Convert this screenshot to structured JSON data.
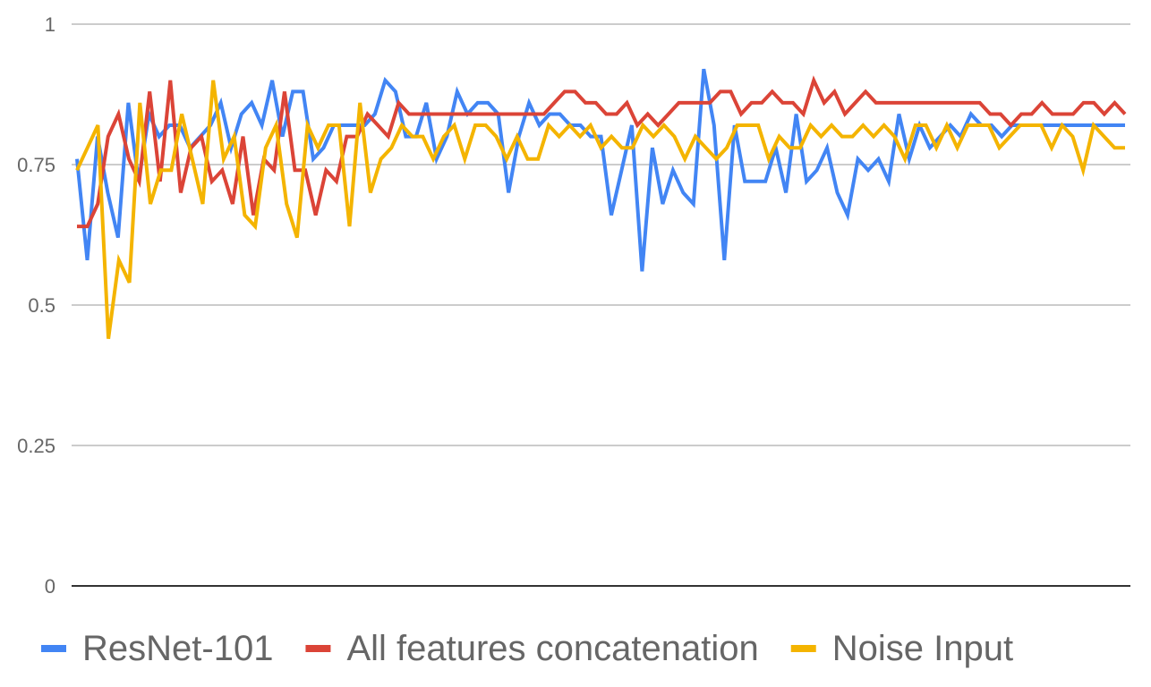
{
  "chart_data": {
    "type": "line",
    "title": "",
    "xlabel": "",
    "ylabel": "",
    "ylim": [
      0,
      1
    ],
    "yticks": [
      "0",
      "0.25",
      "0.5",
      "0.75",
      "1"
    ],
    "grid": true,
    "legend_position": "bottom",
    "series": [
      {
        "name": "ResNet-101",
        "color": "#4285F4",
        "values": [
          0.76,
          0.58,
          0.8,
          0.7,
          0.62,
          0.86,
          0.72,
          0.84,
          0.8,
          0.82,
          0.82,
          0.78,
          0.8,
          0.82,
          0.86,
          0.78,
          0.84,
          0.86,
          0.82,
          0.9,
          0.8,
          0.88,
          0.88,
          0.76,
          0.78,
          0.82,
          0.82,
          0.82,
          0.82,
          0.84,
          0.9,
          0.88,
          0.8,
          0.8,
          0.86,
          0.76,
          0.8,
          0.88,
          0.84,
          0.86,
          0.86,
          0.84,
          0.7,
          0.8,
          0.86,
          0.82,
          0.84,
          0.84,
          0.82,
          0.82,
          0.8,
          0.8,
          0.66,
          0.74,
          0.82,
          0.56,
          0.78,
          0.68,
          0.74,
          0.7,
          0.68,
          0.92,
          0.82,
          0.58,
          0.82,
          0.72,
          0.72,
          0.72,
          0.78,
          0.7,
          0.84,
          0.72,
          0.74,
          0.78,
          0.7,
          0.66,
          0.76,
          0.74,
          0.76,
          0.72,
          0.84,
          0.76,
          0.82,
          0.78,
          0.8,
          0.82,
          0.8,
          0.84,
          0.82,
          0.82,
          0.8,
          0.82,
          0.82,
          0.82,
          0.82,
          0.82,
          0.82,
          0.82,
          0.82,
          0.82,
          0.82,
          0.82,
          0.82
        ]
      },
      {
        "name": "All features concatenation",
        "color": "#DB4437",
        "values": [
          0.64,
          0.64,
          0.68,
          0.8,
          0.84,
          0.76,
          0.72,
          0.88,
          0.72,
          0.9,
          0.7,
          0.78,
          0.8,
          0.72,
          0.74,
          0.68,
          0.8,
          0.66,
          0.76,
          0.74,
          0.88,
          0.74,
          0.74,
          0.66,
          0.74,
          0.72,
          0.8,
          0.8,
          0.84,
          0.82,
          0.8,
          0.86,
          0.84,
          0.84,
          0.84,
          0.84,
          0.84,
          0.84,
          0.84,
          0.84,
          0.84,
          0.84,
          0.84,
          0.84,
          0.84,
          0.84,
          0.86,
          0.88,
          0.88,
          0.86,
          0.86,
          0.84,
          0.84,
          0.86,
          0.82,
          0.84,
          0.82,
          0.84,
          0.86,
          0.86,
          0.86,
          0.86,
          0.88,
          0.88,
          0.84,
          0.86,
          0.86,
          0.88,
          0.86,
          0.86,
          0.84,
          0.9,
          0.86,
          0.88,
          0.84,
          0.86,
          0.88,
          0.86,
          0.86,
          0.86,
          0.86,
          0.86,
          0.86,
          0.86,
          0.86,
          0.86,
          0.86,
          0.86,
          0.84,
          0.84,
          0.82,
          0.84,
          0.84,
          0.86,
          0.84,
          0.84,
          0.84,
          0.86,
          0.86,
          0.84,
          0.86,
          0.84
        ]
      },
      {
        "name": "Noise Input",
        "color": "#F4B400",
        "values": [
          0.74,
          0.78,
          0.82,
          0.44,
          0.58,
          0.54,
          0.86,
          0.68,
          0.74,
          0.74,
          0.84,
          0.76,
          0.68,
          0.9,
          0.76,
          0.8,
          0.66,
          0.64,
          0.78,
          0.82,
          0.68,
          0.62,
          0.82,
          0.78,
          0.82,
          0.82,
          0.64,
          0.86,
          0.7,
          0.76,
          0.78,
          0.82,
          0.8,
          0.8,
          0.76,
          0.8,
          0.82,
          0.76,
          0.82,
          0.82,
          0.8,
          0.76,
          0.8,
          0.76,
          0.76,
          0.82,
          0.8,
          0.82,
          0.8,
          0.82,
          0.78,
          0.8,
          0.78,
          0.78,
          0.82,
          0.8,
          0.82,
          0.8,
          0.76,
          0.8,
          0.78,
          0.76,
          0.78,
          0.82,
          0.82,
          0.82,
          0.76,
          0.8,
          0.78,
          0.78,
          0.82,
          0.8,
          0.82,
          0.8,
          0.8,
          0.82,
          0.8,
          0.82,
          0.8,
          0.76,
          0.82,
          0.82,
          0.78,
          0.82,
          0.78,
          0.82,
          0.82,
          0.82,
          0.78,
          0.8,
          0.82,
          0.82,
          0.82,
          0.78,
          0.82,
          0.8,
          0.74,
          0.82,
          0.8,
          0.78,
          0.78
        ]
      }
    ]
  }
}
